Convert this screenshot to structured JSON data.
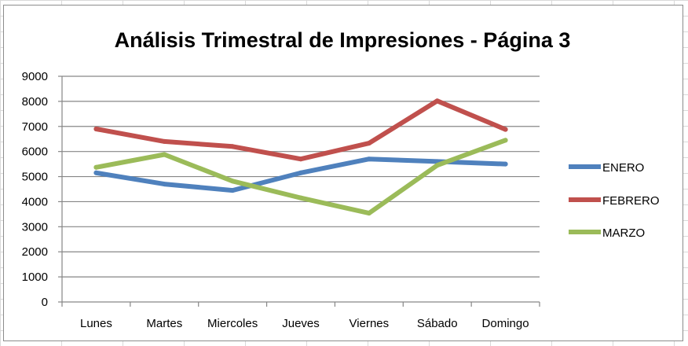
{
  "chart_data": {
    "type": "line",
    "title": "Análisis Trimestral de Impresiones - Página 3",
    "xlabel": "",
    "ylabel": "",
    "categories": [
      "Lunes",
      "Martes",
      "Miercoles",
      "Jueves",
      "Viernes",
      "Sábado",
      "Domingo"
    ],
    "ylim": [
      0,
      9000
    ],
    "yticks": [
      "0",
      "1000",
      "2000",
      "3000",
      "4000",
      "5000",
      "6000",
      "7000",
      "8000",
      "9000"
    ],
    "grid": true,
    "legend": "right",
    "series": [
      {
        "name": "ENERO",
        "color": "#4f81bd",
        "values": [
          5150,
          4700,
          4450,
          5150,
          5700,
          5600,
          5500
        ]
      },
      {
        "name": "FEBRERO",
        "color": "#c0504d",
        "values": [
          6900,
          6400,
          6200,
          5700,
          6330,
          8020,
          6880
        ]
      },
      {
        "name": "MARZO",
        "color": "#9bbb59",
        "values": [
          5370,
          5880,
          4820,
          4150,
          3540,
          5450,
          6450
        ]
      }
    ]
  }
}
